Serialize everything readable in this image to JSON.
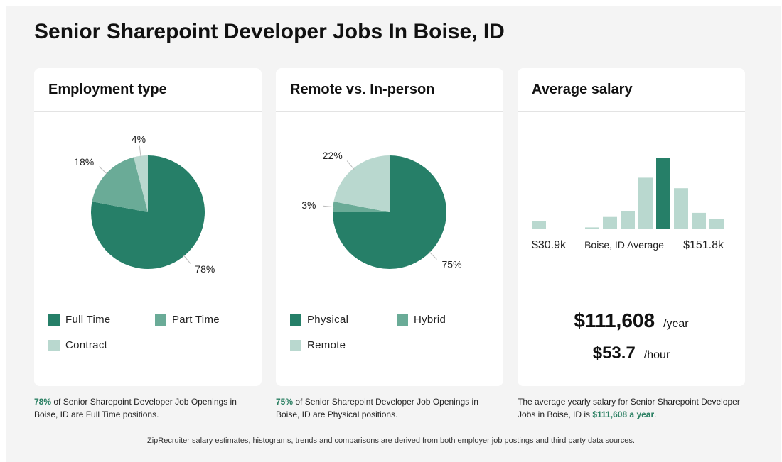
{
  "page": {
    "title": "Senior Sharepoint Developer Jobs In Boise, ID",
    "footer": "ZipRecruiter salary estimates, histograms, trends and comparisons are derived from both employer job postings and third party data sources."
  },
  "colors": {
    "dark_green": "#267f68",
    "mid_green": "#6aab97",
    "light_green": "#b9d8cf",
    "highlight": "#2a7f62"
  },
  "employment": {
    "title": "Employment type",
    "caption_pct": "78%",
    "caption_text": " of Senior Sharepoint Developer Job Openings in Boise, ID are Full Time positions.",
    "legend": [
      "Full Time",
      "Part Time",
      "Contract"
    ],
    "pct_labels": [
      "78%",
      "18%",
      "4%"
    ]
  },
  "remote": {
    "title": "Remote vs. In-person",
    "caption_pct": "75%",
    "caption_text": " of Senior Sharepoint Developer Job Openings in Boise, ID are Physical positions.",
    "legend": [
      "Physical",
      "Hybrid",
      "Remote"
    ],
    "pct_labels": [
      "75%",
      "3%",
      "22%"
    ]
  },
  "salary": {
    "title": "Average salary",
    "min_label": "$30.9k",
    "mid_label": "Boise, ID Average",
    "max_label": "$151.8k",
    "yearly": "$111,608",
    "yearly_unit": "/year",
    "hourly": "$53.7",
    "hourly_unit": "/hour",
    "caption_text": "The average yearly salary for Senior Sharepoint Developer Jobs in Boise, ID is ",
    "caption_highlight": "$111,608 a year",
    "caption_end": "."
  },
  "chart_data": [
    {
      "type": "pie",
      "title": "Employment type",
      "categories": [
        "Full Time",
        "Part Time",
        "Contract"
      ],
      "values": [
        78,
        18,
        4
      ],
      "colors": [
        "#267f68",
        "#6aab97",
        "#b9d8cf"
      ]
    },
    {
      "type": "pie",
      "title": "Remote vs. In-person",
      "categories": [
        "Physical",
        "Hybrid",
        "Remote"
      ],
      "values": [
        75,
        3,
        22
      ],
      "colors": [
        "#267f68",
        "#6aab97",
        "#b9d8cf"
      ]
    },
    {
      "type": "bar",
      "title": "Average salary",
      "values": [
        1,
        0,
        0,
        0.15,
        1.55,
        2.3,
        6.8,
        9.5,
        5.4,
        2.1,
        1.3
      ],
      "highlight_index": 7,
      "xlabel_left": "$30.9k",
      "xlabel_mid": "Boise, ID Average",
      "xlabel_right": "$151.8k"
    }
  ]
}
